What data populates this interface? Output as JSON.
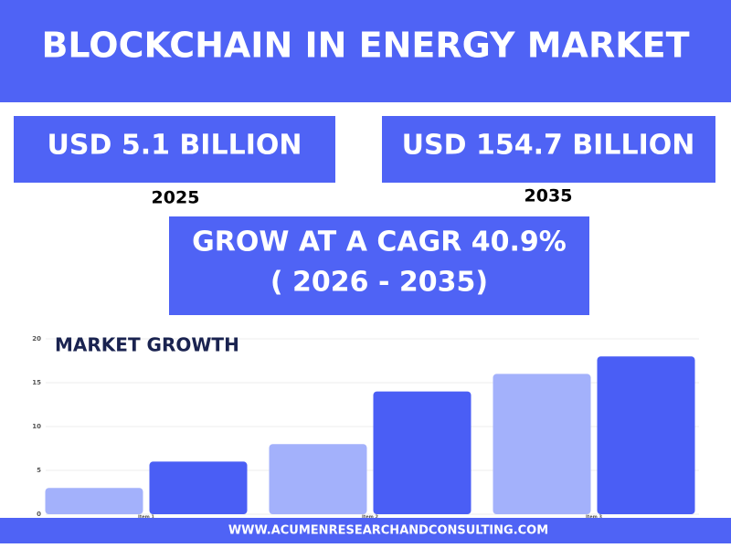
{
  "header": {
    "title": "BLOCKCHAIN IN ENERGY MARKET"
  },
  "stats": [
    {
      "value": "USD 5.1 BILLION",
      "year": "2025"
    },
    {
      "value": "USD 154.7 BILLION",
      "year": "2035"
    }
  ],
  "cagr": {
    "line1": "GROW AT A CAGR 40.9%",
    "line2": "( 2026 - 2035)"
  },
  "chart_data": {
    "type": "bar",
    "title": "MARKET GROWTH",
    "categories": [
      "Item 1",
      "Item 2",
      "Item 3"
    ],
    "series": [
      {
        "color": "#a3b1fb",
        "values": [
          3,
          8,
          16
        ]
      },
      {
        "color": "#4a5ef5",
        "values": [
          6,
          14,
          18
        ]
      }
    ],
    "ylim": [
      0,
      20
    ],
    "yticks": [
      0,
      5,
      10,
      15,
      20
    ],
    "grid": true
  },
  "footer": {
    "url": "WWW.ACUMENRESEARCHANDCONSULTING.COM"
  }
}
